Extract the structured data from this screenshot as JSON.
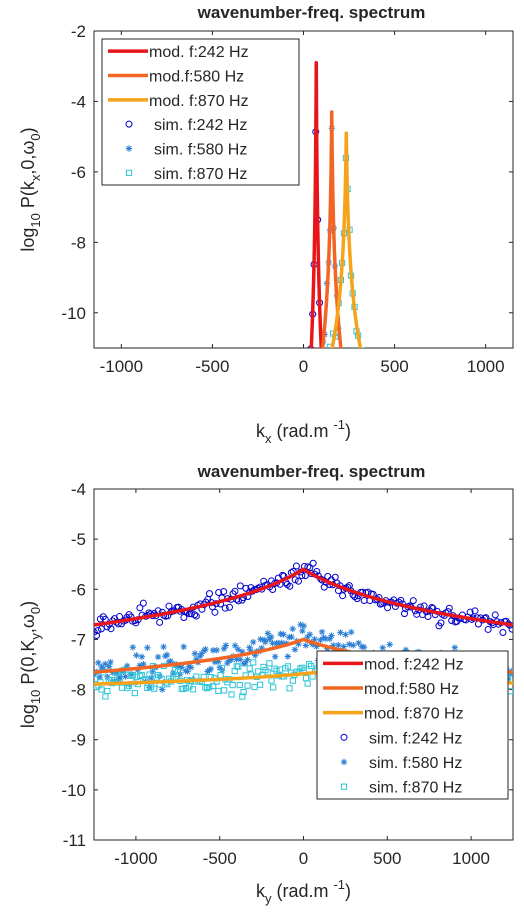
{
  "chart_data": [
    {
      "type": "line",
      "title": "wavenumber-freq. spectrum",
      "xlabel": {
        "main": "k",
        "sub": "x",
        "unit": " (rad.m ",
        "sup": "-1",
        "close": ")"
      },
      "ylabel": {
        "main": "log",
        "sub1": "10",
        "mid": " P(k",
        "sub2": "x",
        "mid2": ",0,",
        "greek": "ω",
        "sub3": "0",
        "close": ")"
      },
      "xlim": [
        -1150,
        1150
      ],
      "ylim": [
        -11,
        -2
      ],
      "xticks": [
        -1000,
        -500,
        0,
        500,
        1000
      ],
      "xtick_labels": [
        "-1000",
        "-500",
        "0",
        "500",
        "1000"
      ],
      "yticks": [
        -10,
        -8,
        -6,
        -4,
        -2
      ],
      "ytick_labels": [
        "-10",
        "-8",
        "-6",
        "-4",
        "-2"
      ],
      "legend_position": "top-left",
      "model_series": [
        {
          "name": "mod. f:242 Hz",
          "color": "#e8161b",
          "x0": 70,
          "peak": -2.9,
          "a": 7.9,
          "b": 0.35,
          "xmin": -1100,
          "xmax": 1100
        },
        {
          "name": "mod.f:580 Hz",
          "color": "#f26522",
          "x0": 155,
          "peak": -4.3,
          "a": 6.0,
          "b": 0.24,
          "xmin": -1100,
          "xmax": 1100
        },
        {
          "name": "mod. f:870 Hz",
          "color": "#f5a31a",
          "x0": 235,
          "peak": -4.9,
          "a": 5.1,
          "b": 0.19,
          "xmin": -1100,
          "xmax": 1100
        }
      ],
      "sim_series": [
        {
          "name": "sim. f:242 Hz",
          "color": "#0000cc",
          "marker": "circle",
          "noise": 0.18
        },
        {
          "name": "sim. f:580 Hz",
          "color": "#2b7fd4",
          "marker": "asterisk",
          "noise": 0.2
        },
        {
          "name": "sim. f:870 Hz",
          "color": "#2fc4d6",
          "marker": "square",
          "noise": 0.22
        }
      ]
    },
    {
      "type": "line",
      "title": "wavenumber-freq. spectrum",
      "xlabel": {
        "main": "k",
        "sub": "y",
        "unit": " (rad.m ",
        "sup": "-1",
        "close": ")"
      },
      "ylabel": {
        "main": "log",
        "sub1": "10",
        "mid": " P(0,K",
        "sub2": "y",
        "mid2": ",",
        "greek": "ω",
        "sub3": "0",
        "close": ")"
      },
      "xlim": [
        -1250,
        1250
      ],
      "ylim": [
        -11,
        -4
      ],
      "xticks": [
        -1000,
        -500,
        0,
        500,
        1000
      ],
      "xtick_labels": [
        "-1000",
        "-500",
        "0",
        "500",
        "1000"
      ],
      "yticks": [
        -11,
        -10,
        -9,
        -8,
        -7,
        -6,
        -5,
        -4
      ],
      "ytick_labels": [
        "-11",
        "-10",
        "-9",
        "-8",
        "-7",
        "-6",
        "-5",
        "-4"
      ],
      "legend_position": "bottom-right",
      "model_series": [
        {
          "name": "mod. f:242 Hz",
          "color": "#e8161b",
          "x0": 0,
          "peak": -5.6,
          "a": 1.7,
          "b": 0.0028,
          "xmin": -1250,
          "xmax": 1250
        },
        {
          "name": "mod.f:580 Hz",
          "color": "#f26522",
          "x0": 0,
          "peak": -7.0,
          "a": 1.0,
          "b": 0.0028,
          "xmin": -1250,
          "xmax": 1250
        },
        {
          "name": "mod. f:870 Hz",
          "color": "#f5a31a",
          "x0": 100,
          "peak": -7.65,
          "a": 0.4,
          "b": 0.0022,
          "xmin": -1250,
          "xmax": 1250
        }
      ],
      "sim_series": [
        {
          "name": "sim. f:242 Hz",
          "color": "#0000cc",
          "marker": "circle",
          "noise": 0.09
        },
        {
          "name": "sim. f:580 Hz",
          "color": "#2b7fd4",
          "marker": "asterisk",
          "noise": 0.18
        },
        {
          "name": "sim. f:870 Hz",
          "color": "#2fc4d6",
          "marker": "square",
          "noise": 0.14
        }
      ]
    }
  ]
}
